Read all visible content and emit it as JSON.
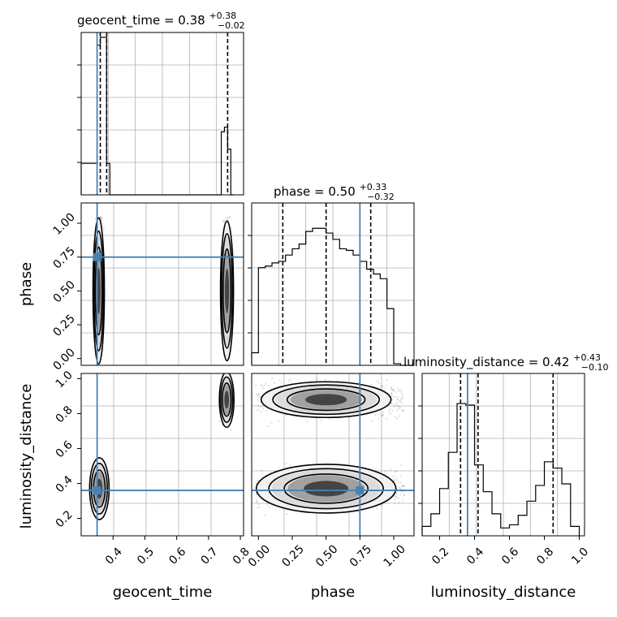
{
  "truth_color": "#4682b4",
  "chart_data": {
    "type": "corner",
    "parameters": [
      "geocent_time",
      "phase",
      "luminosity_distance"
    ],
    "truths": {
      "geocent_time": 0.35,
      "phase": 0.75,
      "luminosity_distance": 0.36
    },
    "titles": [
      {
        "name": "geocent_time",
        "label": "geocent_time = 0.38",
        "plus": "+0.38",
        "minus": "−0.02"
      },
      {
        "name": "phase",
        "label": "phase = 0.50",
        "plus": "+0.33",
        "minus": "−0.32"
      },
      {
        "name": "luminosity_distance",
        "label": "luminosity_distance = 0.42",
        "plus": "+0.43",
        "minus": "−0.10"
      }
    ],
    "axis_labels": {
      "x": [
        "geocent_time",
        "phase",
        "luminosity_distance"
      ],
      "y": [
        "phase",
        "luminosity_distance"
      ]
    },
    "ranges": {
      "geocent_time": [
        0.3,
        0.81
      ],
      "phase": [
        -0.05,
        1.15
      ],
      "luminosity_distance": [
        0.1,
        1.03
      ]
    },
    "ticks": {
      "geocent_time": [
        "0.4",
        "0.5",
        "0.6",
        "0.7",
        "0.8"
      ],
      "phase": [
        "0.00",
        "0.25",
        "0.50",
        "0.75",
        "1.00"
      ],
      "luminosity_distance": [
        "0.2",
        "0.4",
        "0.6",
        "0.8",
        "1.0"
      ],
      "luminosity_distance_y": [
        "0.2",
        "0.4",
        "0.6",
        "0.8",
        "1.0"
      ]
    },
    "quantile_lines": {
      "geocent_time": [
        0.36,
        0.38,
        0.76
      ],
      "phase": [
        0.18,
        0.5,
        0.83
      ],
      "luminosity_distance": [
        0.32,
        0.42,
        0.85
      ]
    },
    "histograms": {
      "geocent_time": {
        "edges": [
          0.3,
          0.35,
          0.36,
          0.38,
          0.39,
          0.41,
          0.74,
          0.75,
          0.76,
          0.77,
          0.78
        ],
        "heights": [
          0.2,
          0.95,
          1.0,
          0.2,
          0.0,
          0.0,
          0.4,
          0.43,
          0.29,
          0.0
        ]
      },
      "phase": {
        "edges": [
          -0.05,
          0.0,
          0.05,
          0.1,
          0.15,
          0.2,
          0.25,
          0.3,
          0.35,
          0.4,
          0.45,
          0.5,
          0.55,
          0.6,
          0.65,
          0.7,
          0.75,
          0.8,
          0.85,
          0.9,
          0.95,
          1.0,
          1.05,
          1.1
        ],
        "heights": [
          0.08,
          0.62,
          0.63,
          0.65,
          0.66,
          0.7,
          0.74,
          0.77,
          0.85,
          0.87,
          0.87,
          0.84,
          0.8,
          0.74,
          0.73,
          0.7,
          0.66,
          0.61,
          0.58,
          0.55,
          0.36,
          0.01,
          0.0
        ]
      },
      "luminosity_distance": {
        "edges": [
          0.1,
          0.15,
          0.2,
          0.25,
          0.3,
          0.35,
          0.4,
          0.45,
          0.5,
          0.55,
          0.6,
          0.65,
          0.7,
          0.75,
          0.8,
          0.85,
          0.9,
          0.95,
          1.0
        ],
        "heights": [
          0.06,
          0.14,
          0.3,
          0.53,
          0.84,
          0.83,
          0.45,
          0.28,
          0.14,
          0.05,
          0.07,
          0.13,
          0.22,
          0.32,
          0.47,
          0.43,
          0.33,
          0.06
        ]
      }
    },
    "samples_2d": {
      "phase_vs_geocent_time": {
        "x": [
          0.35,
          0.76
        ],
        "y": [
          0.5,
          0.5
        ]
      },
      "luminosity_distance_vs_geocent_time": {
        "x": [
          0.35,
          0.76
        ],
        "y": [
          0.37,
          0.88
        ]
      },
      "luminosity_distance_vs_phase": {
        "x": [
          0.5,
          0.5
        ],
        "y": [
          0.36,
          0.88
        ]
      }
    },
    "grid": true
  }
}
